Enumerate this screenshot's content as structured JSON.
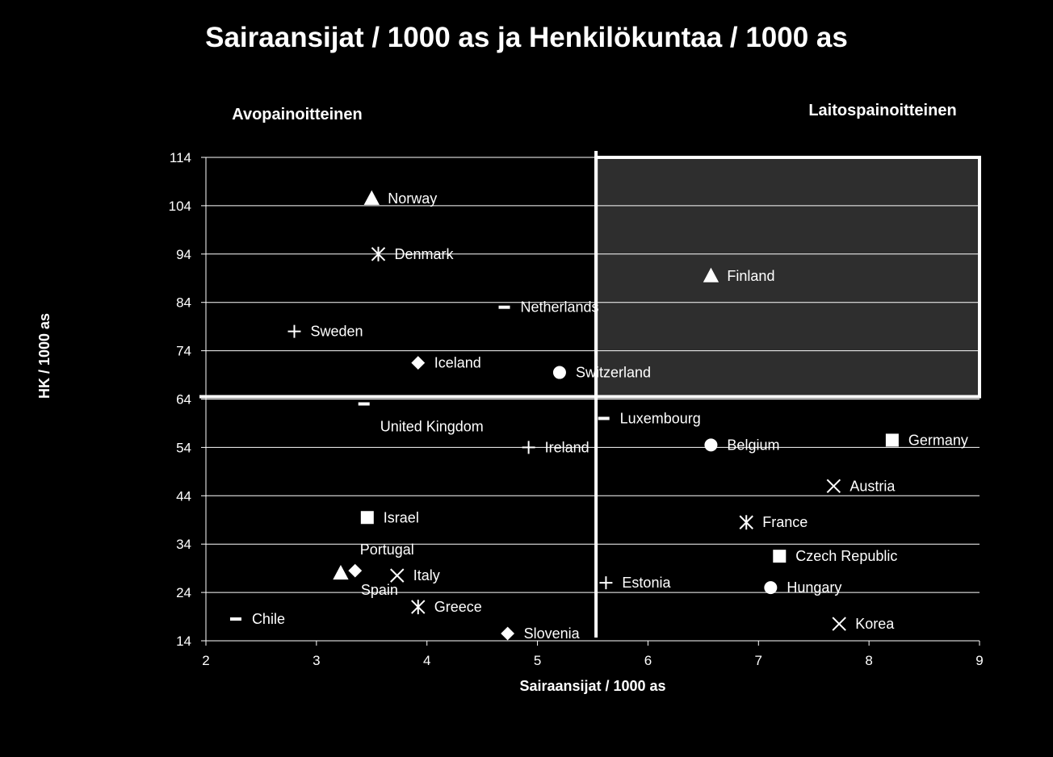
{
  "chart_data": {
    "type": "scatter",
    "title": "Sairaansijat / 1000 as ja Henkilökuntaa / 1000 as",
    "xlabel": "Sairaansijat / 1000 as",
    "ylabel": "HK / 1000 as",
    "xlim": [
      2,
      9
    ],
    "ylim": [
      14,
      114
    ],
    "x_ticks": [
      2,
      3,
      4,
      5,
      6,
      7,
      8,
      9
    ],
    "y_ticks": [
      14,
      24,
      34,
      44,
      54,
      64,
      74,
      84,
      94,
      104,
      114
    ],
    "grid": "horizontal",
    "quadrant_labels": {
      "left": "Avopainoitteinen",
      "right": "Laitospainoitteinen"
    },
    "divider": {
      "x": 5.53,
      "y": 64.5
    },
    "highlight_region": {
      "x": [
        5.53,
        9
      ],
      "y": [
        64.5,
        114
      ],
      "color": "#2e2e2e"
    },
    "points": [
      {
        "name": "Norway",
        "x": 3.5,
        "y": 105.5,
        "marker": "triangle"
      },
      {
        "name": "Denmark",
        "x": 3.56,
        "y": 94,
        "marker": "asterisk"
      },
      {
        "name": "Finland",
        "x": 6.57,
        "y": 89.5,
        "marker": "triangle"
      },
      {
        "name": "Netherlands",
        "x": 4.7,
        "y": 83,
        "marker": "dash"
      },
      {
        "name": "Sweden",
        "x": 2.8,
        "y": 78,
        "marker": "plus"
      },
      {
        "name": "Iceland",
        "x": 3.92,
        "y": 71.5,
        "marker": "diamond"
      },
      {
        "name": "Switzerland",
        "x": 5.2,
        "y": 69.5,
        "marker": "circle"
      },
      {
        "name": "United Kingdom",
        "x": 3.43,
        "y": 63,
        "marker": "dash"
      },
      {
        "name": "Luxembourg",
        "x": 5.6,
        "y": 60,
        "marker": "dash"
      },
      {
        "name": "Ireland",
        "x": 4.92,
        "y": 54,
        "marker": "plus"
      },
      {
        "name": "Belgium",
        "x": 6.57,
        "y": 54.5,
        "marker": "circle"
      },
      {
        "name": "Germany",
        "x": 8.21,
        "y": 55.5,
        "marker": "square"
      },
      {
        "name": "Austria",
        "x": 7.68,
        "y": 46,
        "marker": "x"
      },
      {
        "name": "Israel",
        "x": 3.46,
        "y": 39.5,
        "marker": "square"
      },
      {
        "name": "France",
        "x": 6.89,
        "y": 38.5,
        "marker": "asterisk"
      },
      {
        "name": "Czech Republic",
        "x": 7.19,
        "y": 31.5,
        "marker": "square"
      },
      {
        "name": "Portugal",
        "x": 3.35,
        "y": 28.5,
        "marker": "diamond"
      },
      {
        "name": "",
        "x": 3.22,
        "y": 28,
        "marker": "triangle"
      },
      {
        "name": "Italy",
        "x": 3.73,
        "y": 27.5,
        "marker": "x"
      },
      {
        "name": "Estonia",
        "x": 5.62,
        "y": 26,
        "marker": "plus"
      },
      {
        "name": "Hungary",
        "x": 7.11,
        "y": 25,
        "marker": "circle"
      },
      {
        "name": "Spain",
        "x": 3.22,
        "y": 28,
        "marker": "none"
      },
      {
        "name": "Greece",
        "x": 3.92,
        "y": 21,
        "marker": "asterisk"
      },
      {
        "name": "Chile",
        "x": 2.27,
        "y": 18.5,
        "marker": "dash"
      },
      {
        "name": "Korea",
        "x": 7.73,
        "y": 17.5,
        "marker": "x"
      },
      {
        "name": "Slovenia",
        "x": 4.73,
        "y": 15.5,
        "marker": "diamond"
      }
    ]
  }
}
